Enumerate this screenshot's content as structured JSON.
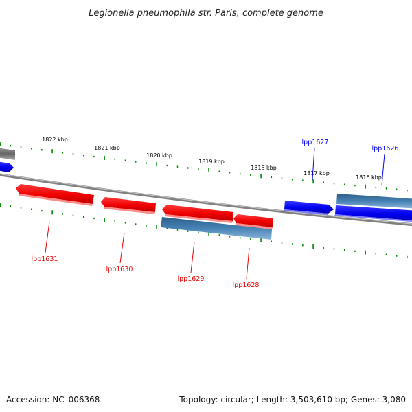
{
  "title": "Legionella pneumophila str. Paris, complete genome",
  "footer": {
    "accession": "Accession: NC_006368",
    "summary": "Topology: circular; Length: 3,503,610 bp; Genes: 3,080"
  },
  "colors": {
    "forward_strand": "#0000ee",
    "reverse_strand": "#ee0000",
    "cds_feature": "#4682b4",
    "backbone": "#888888",
    "ticks": "#008800"
  },
  "scale_labels": [
    "1822 kbp",
    "1821 kbp",
    "1820 kbp",
    "1819 kbp",
    "1818 kbp",
    "1817 kbp",
    "1816 kbp"
  ],
  "genes": [
    {
      "name": "lpp1631",
      "strand": "reverse"
    },
    {
      "name": "lpp1630",
      "strand": "reverse"
    },
    {
      "name": "lpp1629",
      "strand": "reverse"
    },
    {
      "name": "lpp1628",
      "strand": "reverse"
    },
    {
      "name": "lpp1627",
      "strand": "forward"
    },
    {
      "name": "lpp1626",
      "strand": "forward"
    }
  ]
}
